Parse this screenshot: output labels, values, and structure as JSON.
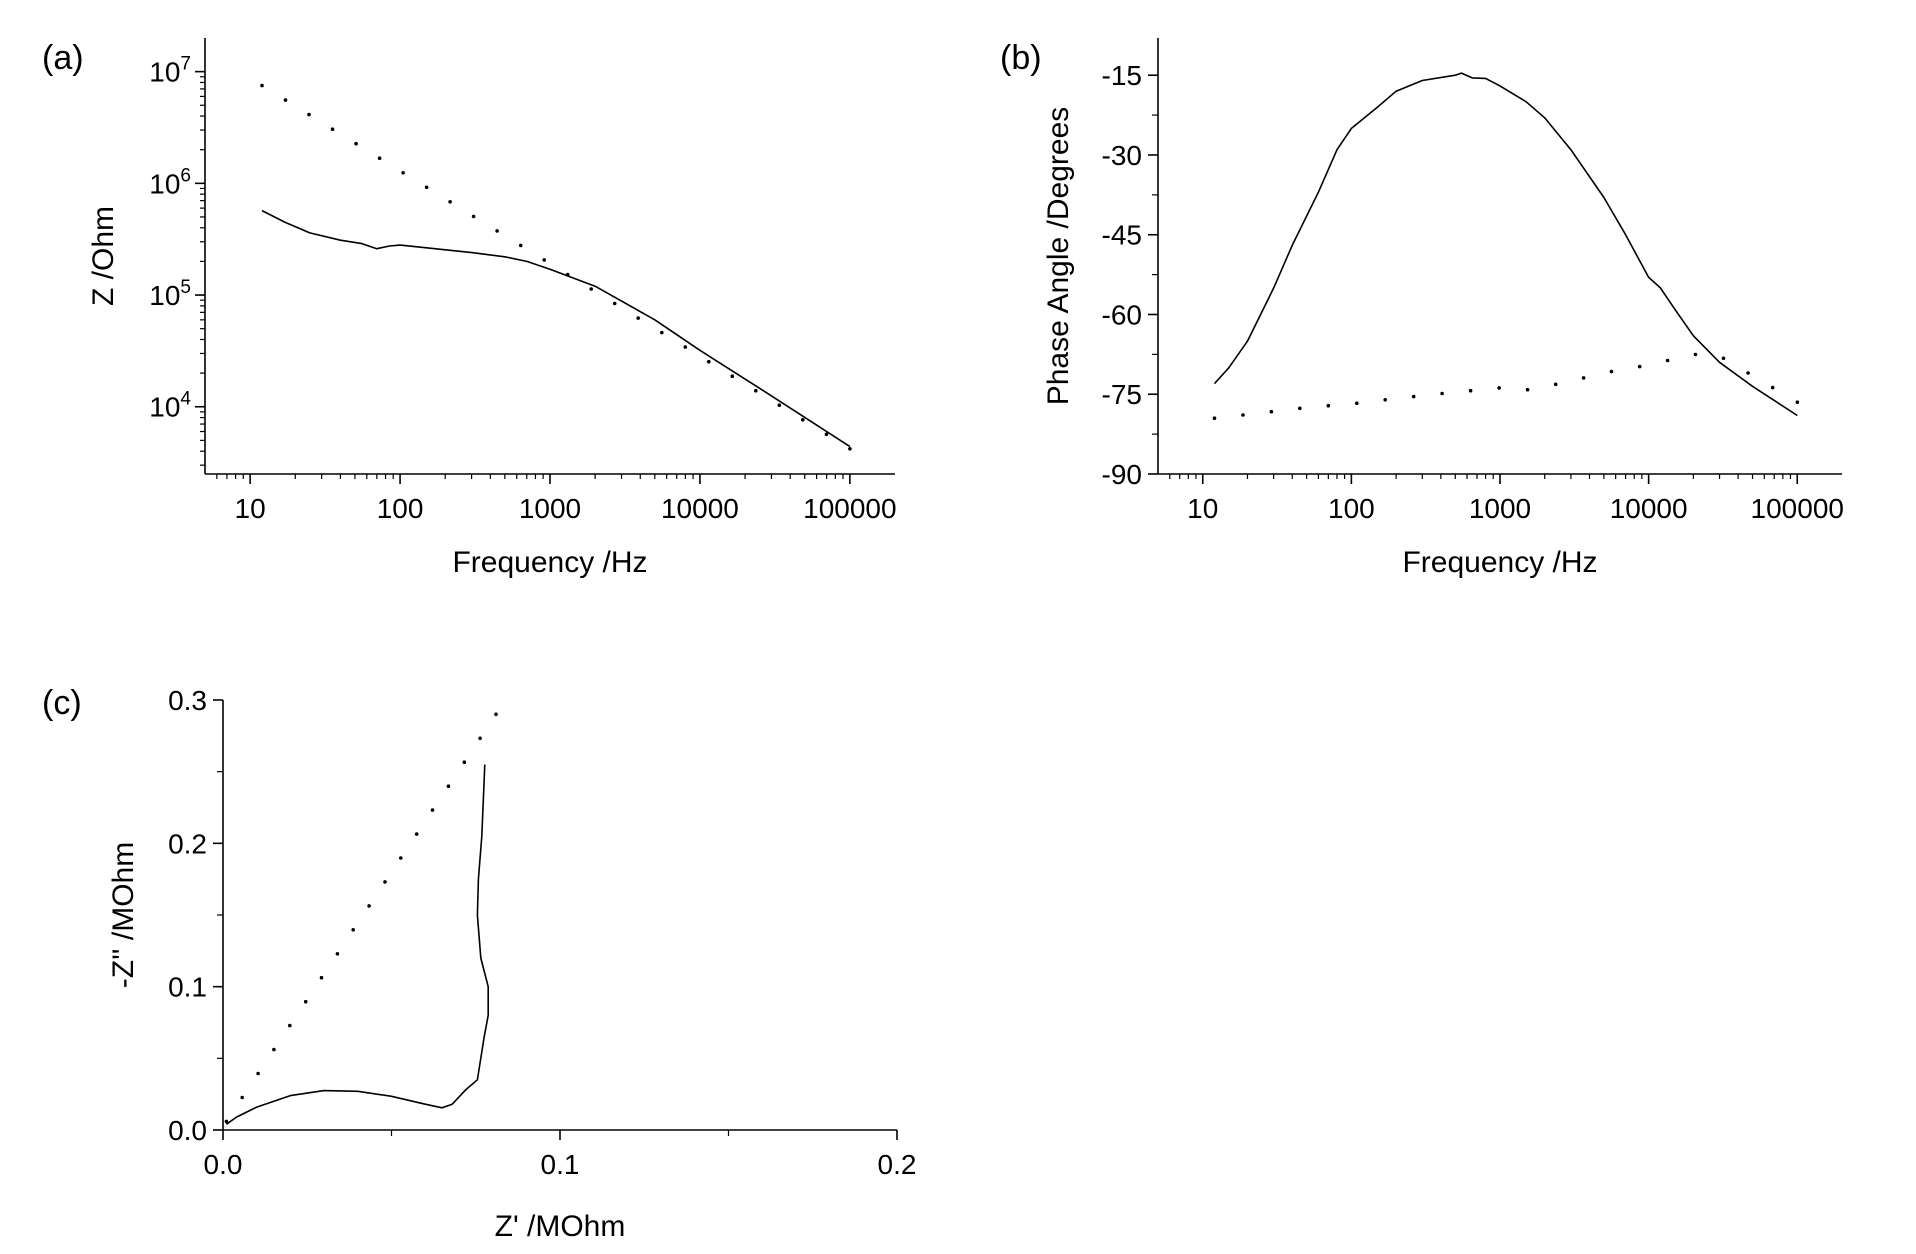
{
  "chart_data": [
    {
      "panel": "(a)",
      "type": "line",
      "xscale": "log",
      "yscale": "log",
      "xlim": [
        5,
        200000
      ],
      "ylim": [
        2500,
        20000000
      ],
      "xlabel": "Frequency /Hz",
      "ylabel": "Z /Ohm",
      "xticks": [
        {
          "v": 10,
          "label": "10"
        },
        {
          "v": 100,
          "label": "100"
        },
        {
          "v": 1000,
          "label": "1000"
        },
        {
          "v": 10000,
          "label": "10000"
        },
        {
          "v": 100000,
          "label": "100000"
        }
      ],
      "yticks": [
        {
          "v": 10000,
          "base": "10",
          "exp": "4"
        },
        {
          "v": 100000,
          "base": "10",
          "exp": "5"
        },
        {
          "v": 1000000,
          "base": "10",
          "exp": "6"
        },
        {
          "v": 10000000,
          "base": "10",
          "exp": "7"
        }
      ],
      "series": [
        {
          "name": "solid",
          "style": "solid",
          "x": [
            12,
            17,
            25,
            40,
            55,
            70,
            85,
            100,
            150,
            300,
            500,
            700,
            1000,
            2000,
            5000,
            10000,
            30000,
            100000
          ],
          "y": [
            570000,
            450000,
            360000,
            310000,
            290000,
            260000,
            275000,
            280000,
            265000,
            240000,
            220000,
            200000,
            170000,
            120000,
            60000,
            32000,
            12500,
            4400
          ]
        },
        {
          "name": "dotted",
          "style": "dotted",
          "x": [
            12,
            100000
          ],
          "y": [
            7500000,
            4200
          ]
        }
      ]
    },
    {
      "panel": "(b)",
      "type": "line",
      "xscale": "log",
      "yscale": "linear",
      "xlim": [
        5,
        200000
      ],
      "ylim": [
        -90,
        -8
      ],
      "xlabel": "Frequency /Hz",
      "ylabel": "Phase Angle /Degrees",
      "xticks": [
        {
          "v": 10,
          "label": "10"
        },
        {
          "v": 100,
          "label": "100"
        },
        {
          "v": 1000,
          "label": "1000"
        },
        {
          "v": 10000,
          "label": "10000"
        },
        {
          "v": 100000,
          "label": "100000"
        }
      ],
      "yticks": [
        {
          "v": -15,
          "label": "-15"
        },
        {
          "v": -30,
          "label": "-30"
        },
        {
          "v": -45,
          "label": "-45"
        },
        {
          "v": -60,
          "label": "-60"
        },
        {
          "v": -75,
          "label": "-75"
        },
        {
          "v": -90,
          "label": "-90"
        }
      ],
      "series": [
        {
          "name": "solid",
          "style": "solid",
          "x": [
            12,
            15,
            20,
            30,
            40,
            60,
            80,
            100,
            150,
            200,
            300,
            500,
            550,
            650,
            800,
            1000,
            1500,
            2000,
            3000,
            5000,
            7000,
            10000,
            12000,
            15000,
            20000,
            30000,
            50000,
            100000
          ],
          "y": [
            -73,
            -70,
            -65,
            -55,
            -47,
            -37,
            -29,
            -25,
            -21,
            -18,
            -16,
            -15,
            -14.6,
            -15.5,
            -15.6,
            -17,
            -20,
            -23,
            -29,
            -38,
            -45,
            -53,
            -55,
            -59,
            -64,
            -69,
            -73.5,
            -79
          ]
        },
        {
          "name": "dotted",
          "style": "dotted",
          "x": [
            12,
            20,
            50,
            100,
            200,
            500,
            1000,
            1500,
            2000,
            3000,
            5000,
            10000,
            20000,
            30000,
            50000,
            100000
          ],
          "y": [
            -79.5,
            -78.8,
            -77.5,
            -76.8,
            -75.8,
            -74.6,
            -73.8,
            -74.2,
            -73.6,
            -72.5,
            -71,
            -69.5,
            -67.5,
            -67.8,
            -71.5,
            -76.5
          ]
        }
      ]
    },
    {
      "panel": "(c)",
      "type": "line",
      "xscale": "linear",
      "yscale": "linear",
      "xlim": [
        0,
        0.2
      ],
      "ylim": [
        0,
        0.3
      ],
      "xlabel": "Z' /MOhm",
      "ylabel": "-Z'' /MOhm",
      "xticks": [
        {
          "v": 0,
          "label": "0.0"
        },
        {
          "v": 0.1,
          "label": "0.1"
        },
        {
          "v": 0.2,
          "label": "0.2"
        }
      ],
      "yticks": [
        {
          "v": 0,
          "label": "0.0"
        },
        {
          "v": 0.1,
          "label": "0.1"
        },
        {
          "v": 0.2,
          "label": "0.2"
        },
        {
          "v": 0.3,
          "label": "0.3"
        }
      ],
      "series": [
        {
          "name": "solid",
          "style": "solid",
          "x": [
            0.001,
            0.004,
            0.01,
            0.02,
            0.03,
            0.04,
            0.05,
            0.06,
            0.065,
            0.068,
            0.072,
            0.0755,
            0.0765,
            0.0775,
            0.0787,
            0.0787,
            0.0765,
            0.0755,
            0.0758,
            0.0768,
            0.0777
          ],
          "y": [
            0.004,
            0.009,
            0.016,
            0.024,
            0.0275,
            0.027,
            0.0235,
            0.018,
            0.0155,
            0.018,
            0.028,
            0.035,
            0.05,
            0.065,
            0.08,
            0.1,
            0.12,
            0.15,
            0.175,
            0.205,
            0.255
          ]
        },
        {
          "name": "dotted",
          "style": "dotted",
          "x": [
            0.001,
            0.081
          ],
          "y": [
            0.006,
            0.29
          ]
        }
      ]
    }
  ]
}
